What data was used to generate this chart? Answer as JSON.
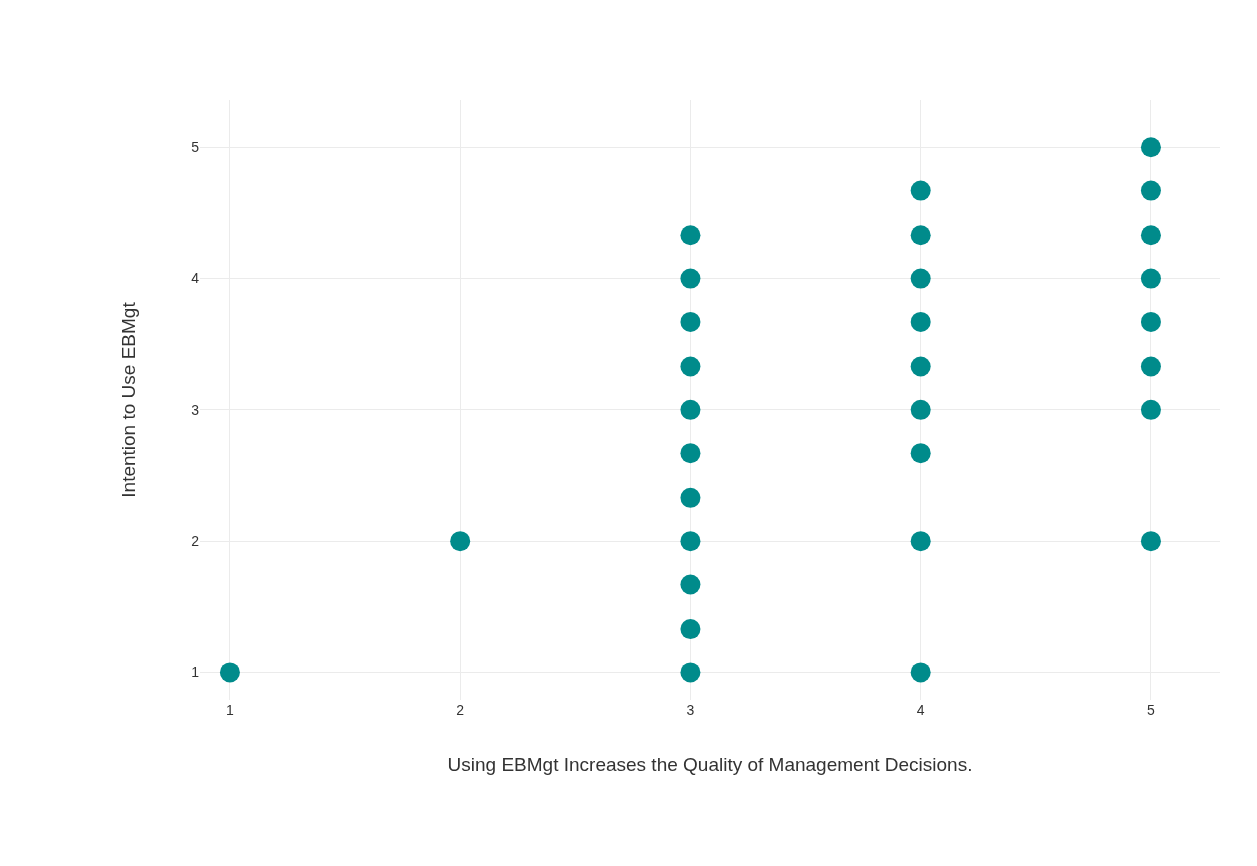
{
  "chart_data": {
    "type": "scatter",
    "xlabel": "Using EBMgt Increases the Quality of Management Decisions.",
    "ylabel": "Intention to Use EBMgt",
    "series": [
      {
        "color": "#008b8b",
        "x": [
          1,
          2,
          3,
          3,
          3,
          3,
          3,
          3,
          3,
          3,
          3,
          3,
          3,
          4,
          4,
          4,
          4,
          4,
          4,
          4,
          4,
          4,
          5,
          5,
          5,
          5,
          5,
          5,
          5,
          5
        ],
        "values": [
          1,
          2,
          1,
          1.33,
          1.67,
          2,
          2.33,
          2.67,
          3,
          3.33,
          3.67,
          4,
          4.33,
          1,
          2,
          2.67,
          3,
          3.33,
          3.67,
          4,
          4.33,
          4.67,
          2,
          3,
          3.33,
          3.67,
          4,
          4.33,
          4.67,
          5
        ]
      }
    ],
    "xlim": [
      0.87,
      5.3
    ],
    "ylim": [
      0.79,
      5.36
    ],
    "xticks": [
      1,
      2,
      3,
      4,
      5
    ],
    "yticks": [
      1,
      2,
      3,
      4,
      5
    ],
    "grid": true,
    "legend": false,
    "marker": "circle"
  }
}
